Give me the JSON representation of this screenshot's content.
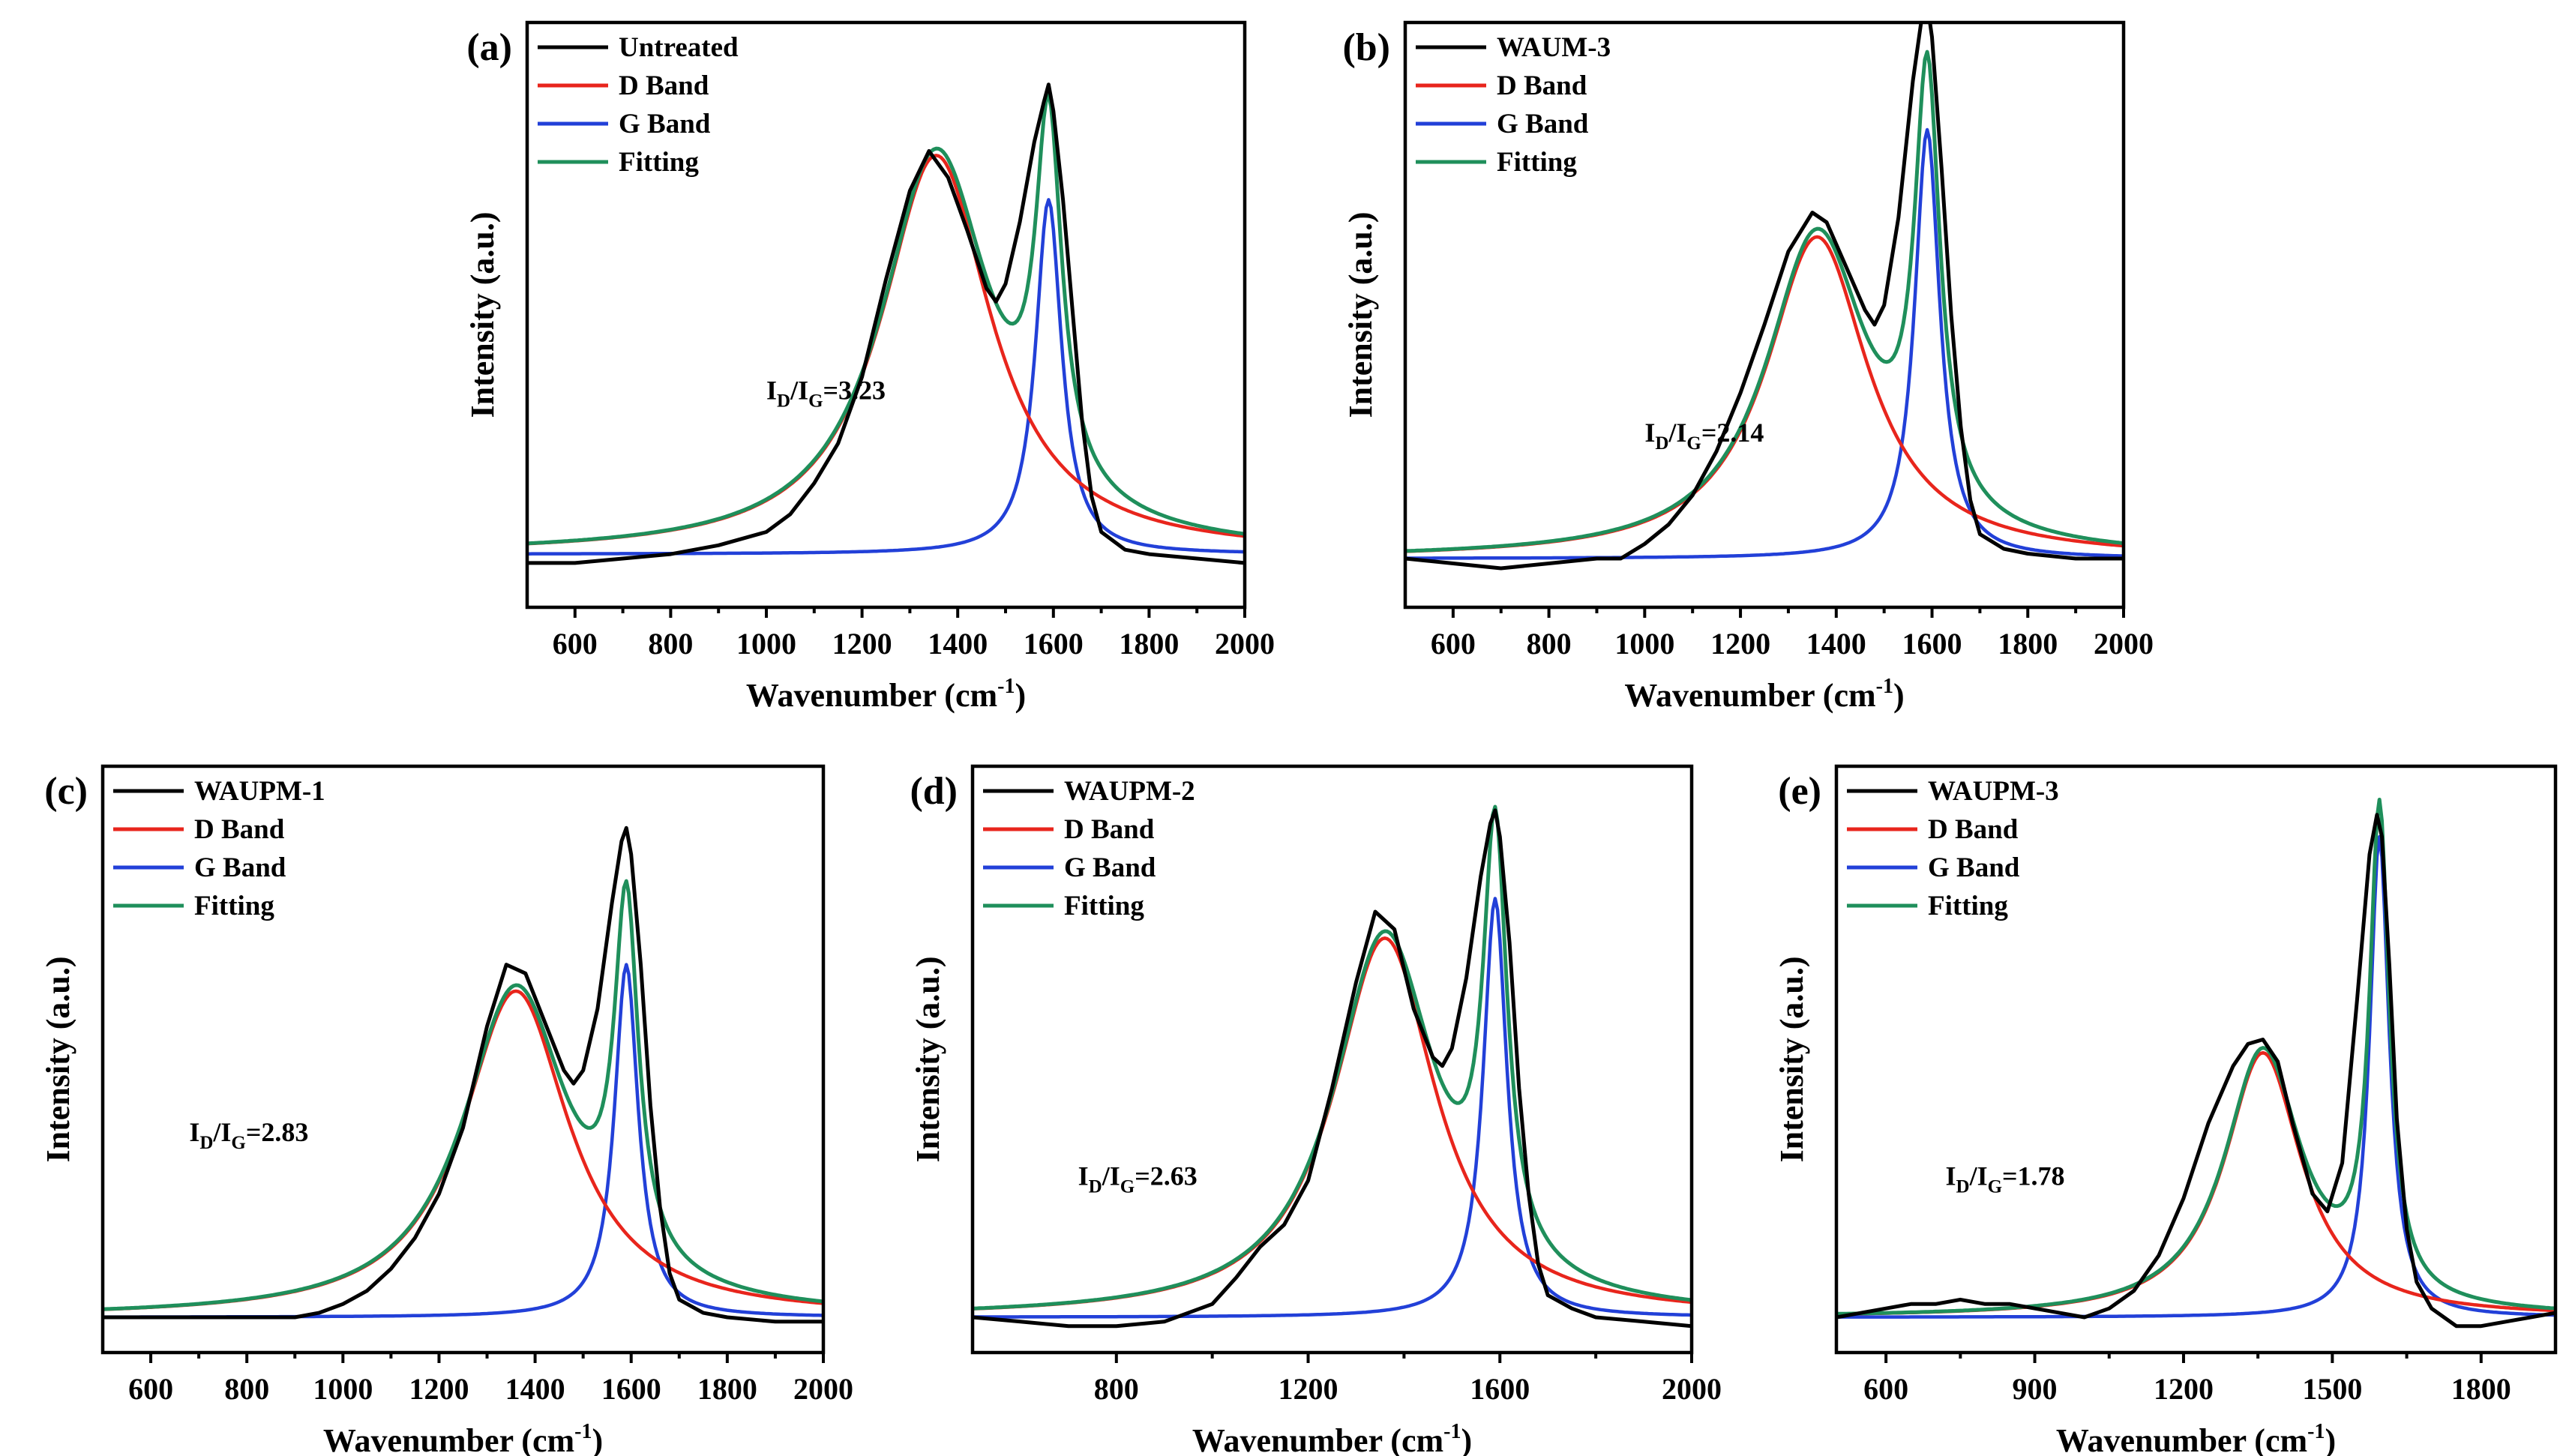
{
  "colors": {
    "data": "#000000",
    "d_band": "#e8251c",
    "g_band": "#2240d8",
    "fitting": "#1f8f5b",
    "frame": "#000000"
  },
  "chart_data": [
    {
      "type": "line",
      "panel_label": "(a)",
      "xlabel": "Wavenumber (cm",
      "xlabel_sup": "-1",
      "xlabel_end": ")",
      "ylabel": "Intensity (a.u.)",
      "xlim": [
        500,
        2000
      ],
      "ylim": [
        -0.12,
        1.2
      ],
      "xticks": [
        600,
        800,
        1000,
        1200,
        1400,
        1600,
        1800,
        2000
      ],
      "tick_labels": [
        "600",
        "800",
        "1000",
        "1200",
        "1400",
        "1600",
        "1800",
        "2000"
      ],
      "legend": [
        "Untreated",
        "D Band",
        "G Band",
        "Fitting"
      ],
      "legend_position": "top-left",
      "annotation": {
        "main": "I",
        "sub1": "D",
        "slash": "/I",
        "sub2": "G",
        "value": "=3.23",
        "x": 1000,
        "y": 0.35
      },
      "peaks": {
        "d_amp": 0.9,
        "d_center": 1355,
        "d_hwhm": 140,
        "g_amp": 0.8,
        "g_center": 1590,
        "g_hwhm": 33
      },
      "series": [
        {
          "name": "Untreated",
          "role": "data",
          "x": [
            500,
            600,
            700,
            800,
            900,
            1000,
            1050,
            1100,
            1150,
            1200,
            1250,
            1300,
            1340,
            1380,
            1420,
            1460,
            1480,
            1500,
            1530,
            1560,
            1580,
            1590,
            1600,
            1620,
            1640,
            1660,
            1680,
            1700,
            1750,
            1800,
            1900,
            2000
          ],
          "y": [
            -0.02,
            -0.02,
            -0.01,
            0.0,
            0.02,
            0.05,
            0.09,
            0.16,
            0.25,
            0.4,
            0.62,
            0.82,
            0.91,
            0.85,
            0.73,
            0.6,
            0.57,
            0.61,
            0.75,
            0.93,
            1.02,
            1.06,
            1.0,
            0.8,
            0.55,
            0.3,
            0.13,
            0.05,
            0.01,
            0.0,
            -0.01,
            -0.02
          ]
        }
      ]
    },
    {
      "type": "line",
      "panel_label": "(b)",
      "xlabel": "Wavenumber (cm",
      "xlabel_sup": "-1",
      "xlabel_end": ")",
      "ylabel": "Intensity (a.u.)",
      "xlim": [
        500,
        2000
      ],
      "ylim": [
        -0.1,
        1.1
      ],
      "xticks": [
        600,
        800,
        1000,
        1200,
        1400,
        1600,
        1800,
        2000
      ],
      "tick_labels": [
        "600",
        "800",
        "1000",
        "1200",
        "1400",
        "1600",
        "1800",
        "2000"
      ],
      "legend": [
        "WAUM-3",
        "D Band",
        "G Band",
        "Fitting"
      ],
      "legend_position": "top-left",
      "annotation": {
        "main": "I",
        "sub1": "D",
        "slash": "/I",
        "sub2": "G",
        "value": "=2.14",
        "x": 1000,
        "y": 0.24
      },
      "peaks": {
        "d_amp": 0.66,
        "d_center": 1360,
        "d_hwhm": 130,
        "g_amp": 0.88,
        "g_center": 1590,
        "g_hwhm": 32
      },
      "series": [
        {
          "name": "WAUM-3",
          "role": "data",
          "x": [
            500,
            600,
            700,
            800,
            900,
            950,
            1000,
            1050,
            1100,
            1150,
            1200,
            1250,
            1300,
            1350,
            1380,
            1420,
            1460,
            1480,
            1500,
            1530,
            1560,
            1580,
            1590,
            1600,
            1620,
            1640,
            1660,
            1680,
            1700,
            1750,
            1800,
            1900,
            2000
          ],
          "y": [
            0.0,
            -0.01,
            -0.02,
            -0.01,
            0.0,
            0.0,
            0.03,
            0.07,
            0.13,
            0.22,
            0.34,
            0.48,
            0.63,
            0.71,
            0.69,
            0.6,
            0.51,
            0.48,
            0.52,
            0.7,
            0.98,
            1.12,
            1.14,
            1.07,
            0.8,
            0.5,
            0.27,
            0.12,
            0.05,
            0.02,
            0.01,
            0.0,
            0.0
          ]
        }
      ]
    },
    {
      "type": "line",
      "panel_label": "(c)",
      "xlabel": "Wavenumber (cm",
      "xlabel_sup": "-1",
      "xlabel_end": ")",
      "ylabel": "Intensity (a.u.)",
      "xlim": [
        500,
        2000
      ],
      "ylim": [
        -0.08,
        1.25
      ],
      "xticks": [
        600,
        800,
        1000,
        1200,
        1400,
        1600,
        1800,
        2000
      ],
      "tick_labels": [
        "600",
        "800",
        "1000",
        "1200",
        "1400",
        "1600",
        "1800",
        "2000"
      ],
      "legend": [
        "WAUPM-1",
        "D Band",
        "G Band",
        "Fitting"
      ],
      "legend_position": "top-left",
      "annotation": {
        "main": "I",
        "sub1": "D",
        "slash": "/I",
        "sub2": "G",
        "value": "=2.83",
        "x": 680,
        "y": 0.4
      },
      "peaks": {
        "d_amp": 0.74,
        "d_center": 1360,
        "d_hwhm": 135,
        "g_amp": 0.8,
        "g_center": 1590,
        "g_hwhm": 30
      },
      "series": [
        {
          "name": "WAUPM-1",
          "role": "data",
          "x": [
            500,
            600,
            700,
            800,
            900,
            950,
            1000,
            1050,
            1100,
            1150,
            1200,
            1250,
            1300,
            1340,
            1380,
            1420,
            1460,
            1480,
            1500,
            1530,
            1560,
            1580,
            1590,
            1600,
            1620,
            1640,
            1660,
            1680,
            1700,
            1750,
            1800,
            1900,
            2000
          ],
          "y": [
            0.0,
            0.0,
            0.0,
            0.0,
            0.0,
            0.01,
            0.03,
            0.06,
            0.11,
            0.18,
            0.28,
            0.43,
            0.66,
            0.8,
            0.78,
            0.67,
            0.56,
            0.53,
            0.56,
            0.7,
            0.94,
            1.08,
            1.11,
            1.05,
            0.8,
            0.48,
            0.25,
            0.1,
            0.04,
            0.01,
            0.0,
            -0.01,
            -0.01
          ]
        }
      ]
    },
    {
      "type": "line",
      "panel_label": "(d)",
      "xlabel": "Wavenumber (cm",
      "xlabel_sup": "-1",
      "xlabel_end": ")",
      "ylabel": "Intensity (a.u.)",
      "xlim": [
        500,
        2000
      ],
      "ylim": [
        -0.08,
        1.25
      ],
      "xticks": [
        800,
        1200,
        1600,
        2000
      ],
      "tick_labels": [
        "800",
        "1200",
        "1600",
        "2000"
      ],
      "legend": [
        "WAUPM-2",
        "D Band",
        "G Band",
        "Fitting"
      ],
      "legend_position": "top-left",
      "annotation": {
        "main": "I",
        "sub1": "D",
        "slash": "/I",
        "sub2": "G",
        "value": "=2.63",
        "x": 720,
        "y": 0.3
      },
      "peaks": {
        "d_amp": 0.86,
        "d_center": 1360,
        "d_hwhm": 130,
        "g_amp": 0.95,
        "g_center": 1590,
        "g_hwhm": 30
      },
      "series": [
        {
          "name": "WAUPM-2",
          "role": "data",
          "x": [
            500,
            600,
            700,
            800,
            900,
            1000,
            1050,
            1100,
            1150,
            1200,
            1250,
            1300,
            1340,
            1380,
            1420,
            1460,
            1480,
            1500,
            1530,
            1560,
            1580,
            1590,
            1600,
            1620,
            1640,
            1660,
            1680,
            1700,
            1750,
            1800,
            1900,
            2000
          ],
          "y": [
            0.0,
            -0.01,
            -0.02,
            -0.02,
            -0.01,
            0.03,
            0.09,
            0.16,
            0.21,
            0.31,
            0.52,
            0.76,
            0.92,
            0.88,
            0.7,
            0.59,
            0.57,
            0.61,
            0.77,
            1.0,
            1.12,
            1.15,
            1.09,
            0.85,
            0.52,
            0.28,
            0.12,
            0.05,
            0.02,
            0.0,
            -0.01,
            -0.02
          ]
        }
      ]
    },
    {
      "type": "line",
      "panel_label": "(e)",
      "xlabel": "Wavenumber (cm",
      "xlabel_sup": "-1",
      "xlabel_end": ")",
      "ylabel": "Intensity (a.u.)",
      "xlim": [
        500,
        1950
      ],
      "ylim": [
        -0.08,
        1.25
      ],
      "xticks": [
        600,
        900,
        1200,
        1500,
        1800
      ],
      "tick_labels": [
        "600",
        "900",
        "1200",
        "1500",
        "1800"
      ],
      "legend": [
        "WAUPM-3",
        "D Band",
        "G Band",
        "Fitting"
      ],
      "legend_position": "top-left",
      "annotation": {
        "main": "I",
        "sub1": "D",
        "slash": "/I",
        "sub2": "G",
        "value": "=1.78",
        "x": 720,
        "y": 0.3
      },
      "peaks": {
        "d_amp": 0.6,
        "d_center": 1360,
        "d_hwhm": 95,
        "g_amp": 1.09,
        "g_center": 1595,
        "g_hwhm": 24
      },
      "series": [
        {
          "name": "WAUPM-3",
          "role": "data",
          "x": [
            500,
            550,
            600,
            650,
            700,
            750,
            800,
            850,
            900,
            950,
            1000,
            1050,
            1100,
            1150,
            1200,
            1250,
            1300,
            1330,
            1360,
            1390,
            1420,
            1460,
            1490,
            1520,
            1550,
            1575,
            1590,
            1600,
            1615,
            1630,
            1650,
            1670,
            1700,
            1750,
            1800,
            1850,
            1900,
            1950
          ],
          "y": [
            0.0,
            0.01,
            0.02,
            0.03,
            0.03,
            0.04,
            0.03,
            0.03,
            0.02,
            0.01,
            0.0,
            0.02,
            0.06,
            0.14,
            0.27,
            0.44,
            0.57,
            0.62,
            0.63,
            0.58,
            0.44,
            0.28,
            0.24,
            0.35,
            0.72,
            1.05,
            1.14,
            1.09,
            0.8,
            0.45,
            0.2,
            0.08,
            0.02,
            -0.02,
            -0.02,
            -0.01,
            0.0,
            0.01
          ]
        }
      ]
    }
  ]
}
